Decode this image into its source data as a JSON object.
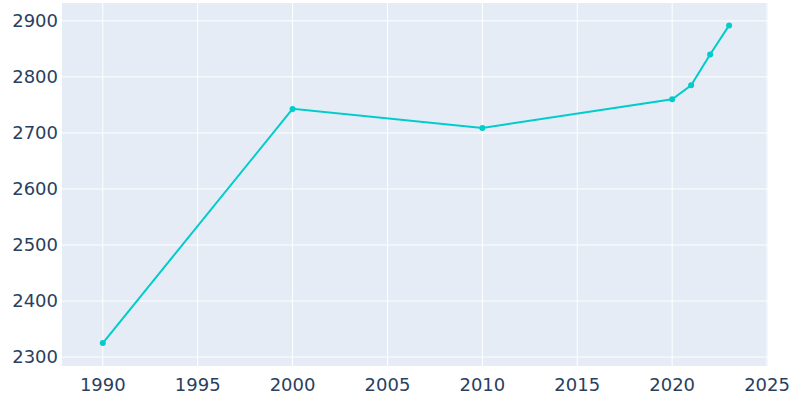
{
  "chart_data": {
    "type": "line",
    "x": [
      1990,
      2000,
      2010,
      2020,
      2021,
      2022,
      2023
    ],
    "values": [
      2325,
      2743,
      2709,
      2760,
      2785,
      2840,
      2892
    ],
    "color": "#00cccc",
    "marker": "circle",
    "xlim": [
      1987.85,
      2025.05
    ],
    "ylim": [
      2284,
      2932
    ],
    "xticks": [
      1990,
      1995,
      2000,
      2005,
      2010,
      2015,
      2020,
      2025
    ],
    "yticks": [
      2300,
      2400,
      2500,
      2600,
      2700,
      2800,
      2900
    ],
    "grid": true
  }
}
